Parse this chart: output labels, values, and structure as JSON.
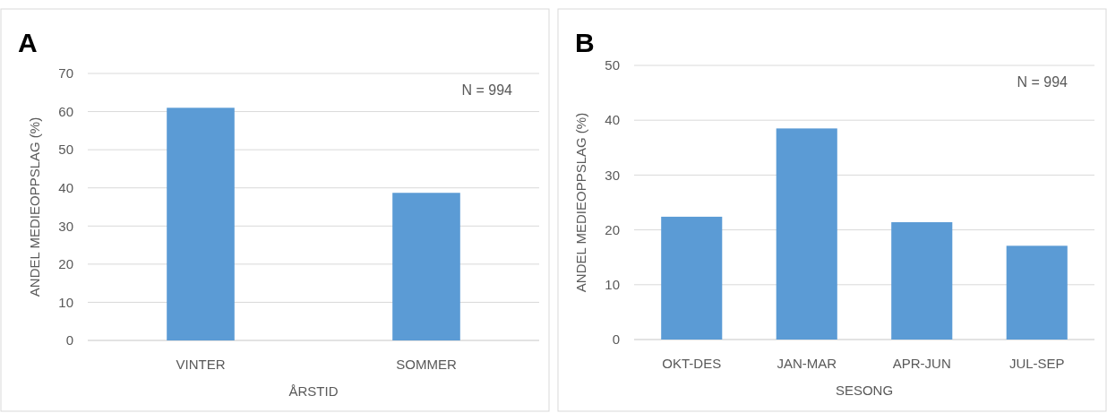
{
  "chart_data": [
    {
      "type": "bar",
      "title": "A",
      "categories": [
        "VINTER",
        "SOMMER"
      ],
      "values": [
        61,
        38.7
      ],
      "color": "#5b9bd5",
      "ylim": [
        0,
        70
      ],
      "yticks": [
        0,
        10,
        20,
        30,
        40,
        50,
        60,
        70
      ],
      "grid": "y",
      "xlabel": "ÅRSTID",
      "ylabel": "ANDEL MEDIEOPPSLAG (%)",
      "annotations": [
        "N = 994"
      ]
    },
    {
      "type": "bar",
      "title": "B",
      "categories": [
        "OKT-DES",
        "JAN-MAR",
        "APR-JUN",
        "JUL-SEP"
      ],
      "values": [
        22.4,
        38.5,
        21.4,
        17.1
      ],
      "color": "#5b9bd5",
      "ylim": [
        0,
        50
      ],
      "yticks": [
        0,
        10,
        20,
        30,
        40,
        50
      ],
      "grid": "y",
      "xlabel": "SESONG",
      "ylabel": "ANDEL MEDIEOPPSLAG (%)",
      "annotations": [
        "N = 994"
      ]
    }
  ]
}
